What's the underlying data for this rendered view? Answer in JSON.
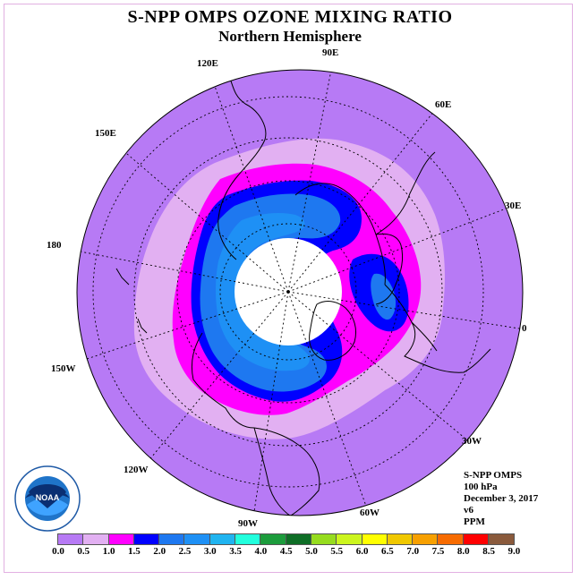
{
  "title": "S-NPP OMPS OZONE MIXING RATIO",
  "subtitle": "Northern Hemisphere",
  "longitude_labels": {
    "lon_90E": "90E",
    "lon_120E": "120E",
    "lon_60E": "60E",
    "lon_150E": "150E",
    "lon_30E": "30E",
    "lon_180": "180",
    "lon_0": "0",
    "lon_150W": "150W",
    "lon_30W": "30W",
    "lon_120W": "120W",
    "lon_60W": "60W",
    "lon_90W": "90W"
  },
  "info": {
    "instrument": "S-NPP OMPS",
    "level": "100 hPa",
    "date": "December 3, 2017",
    "version": "v6",
    "units": "PPM"
  },
  "logo_text": "NOAA",
  "colorbar": {
    "colors": [
      "#b77af5",
      "#e2b0f2",
      "#ff00ff",
      "#0000ff",
      "#1e78f0",
      "#1e90f5",
      "#20b4f0",
      "#22ffdd",
      "#1c9c3c",
      "#0e6e26",
      "#96dc1e",
      "#ccf51e",
      "#ffff00",
      "#f0c800",
      "#f7a000",
      "#f76b00",
      "#ff0000",
      "#8a5a3c"
    ],
    "ticks": [
      "0.0",
      "0.5",
      "1.0",
      "1.5",
      "2.0",
      "2.5",
      "3.0",
      "3.5",
      "4.0",
      "4.5",
      "5.0",
      "5.5",
      "6.0",
      "6.5",
      "7.0",
      "7.5",
      "8.0",
      "8.5",
      "9.0"
    ]
  },
  "map_colors": {
    "background": "#b77af5",
    "light": "#e2b0f2",
    "magenta": "#ff00ff",
    "blue": "#0000ff",
    "medium_blue": "#1e78f0",
    "light_blue": "#1e90f5",
    "no_data": "#ffffff"
  }
}
